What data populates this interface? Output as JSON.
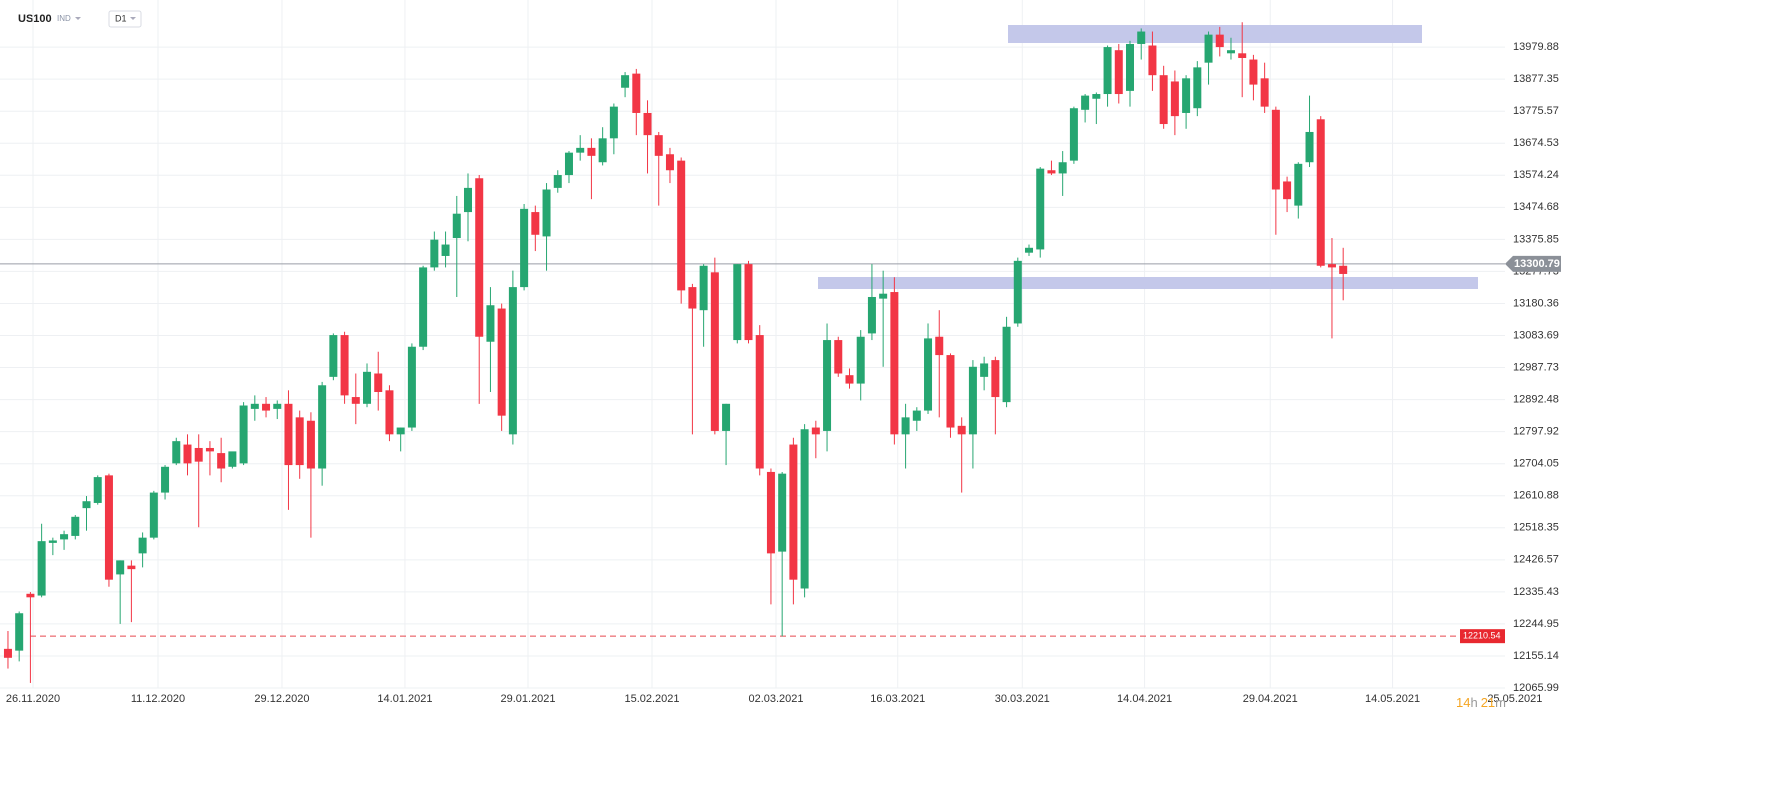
{
  "chart_data": {
    "type": "candlestick",
    "title": "US100",
    "subtitle": "IND",
    "timeframe": "D1",
    "up_color": "#26a671",
    "down_color": "#f23645",
    "log": true,
    "grid": true,
    "ylim": [
      12066,
      14132
    ],
    "yticks": [
      13979.88,
      13877.35,
      13775.57,
      13674.53,
      13574.24,
      13474.68,
      13375.85,
      13277.73,
      13180.36,
      13083.69,
      12987.73,
      12892.48,
      12797.92,
      12704.05,
      12610.88,
      12518.35,
      12426.57,
      12335.43,
      12244.95,
      12155.14,
      12065.99
    ],
    "xlim": [
      -0.71,
      135.65
    ],
    "xticks": [
      {
        "value": 2.23,
        "label": "26.11.2020"
      },
      {
        "value": 13.37,
        "label": "11.12.2020"
      },
      {
        "value": 24.42,
        "label": "29.12.2020"
      },
      {
        "value": 35.38,
        "label": "14.01.2021"
      },
      {
        "value": 46.35,
        "label": "29.01.2021"
      },
      {
        "value": 57.4,
        "label": "15.02.2021"
      },
      {
        "value": 68.45,
        "label": "02.03.2021"
      },
      {
        "value": 79.3,
        "label": "16.03.2021"
      },
      {
        "value": 90.4,
        "label": "30.03.2021"
      },
      {
        "value": 101.3,
        "label": "14.04.2021"
      },
      {
        "value": 112.5,
        "label": "29.04.2021"
      },
      {
        "value": 123.4,
        "label": "14.05.2021"
      },
      {
        "value": 134.3,
        "label": "25.05.2021"
      }
    ],
    "open": [
      12175,
      12170,
      12330,
      12325,
      12475,
      12485,
      12495,
      12575,
      12590,
      12670,
      12385,
      12410,
      12445,
      12490,
      12620,
      12705,
      12760,
      12750,
      12750,
      12735,
      12695,
      12705,
      12865,
      12880,
      12865,
      12880,
      12840,
      12830,
      12690,
      12960,
      13085,
      12900,
      12880,
      12970,
      12920,
      12790,
      12810,
      13050,
      13290,
      13325,
      13380,
      13460,
      13565,
      13065,
      13165,
      12790,
      13230,
      13460,
      13385,
      13535,
      13575,
      13645,
      13660,
      13615,
      13690,
      13850,
      13895,
      13770,
      13700,
      13640,
      13620,
      13230,
      13160,
      13275,
      12800,
      13070,
      13300,
      13085,
      12680,
      12450,
      12760,
      12345,
      12810,
      12800,
      13070,
      12965,
      12940,
      13090,
      13195,
      13215,
      12790,
      12830,
      12860,
      13080,
      13025,
      12815,
      12790,
      12960,
      13010,
      12885,
      13120,
      13335,
      13345,
      13590,
      13580,
      13620,
      13780,
      13815,
      13830,
      13970,
      13840,
      13990,
      13985,
      13890,
      13870,
      13770,
      13785,
      13930,
      14020,
      13960,
      13960,
      13940,
      13880,
      13780,
      13555,
      13480,
      13615,
      13750,
      13300,
      13295
    ],
    "high": [
      12225,
      12280,
      12335,
      12530,
      12490,
      12510,
      12555,
      12610,
      12670,
      12675,
      12425,
      12425,
      12505,
      12625,
      12700,
      12780,
      12790,
      12790,
      12770,
      12780,
      12730,
      12885,
      12905,
      12900,
      12890,
      12920,
      12860,
      12855,
      12945,
      13090,
      13095,
      12970,
      13000,
      13035,
      12935,
      12810,
      13060,
      13295,
      13400,
      13400,
      13510,
      13580,
      13575,
      13230,
      13180,
      13280,
      13485,
      13480,
      13550,
      13590,
      13650,
      13700,
      13690,
      13725,
      13800,
      13900,
      13910,
      13810,
      13710,
      13660,
      13630,
      13240,
      13300,
      13320,
      12880,
      13300,
      13310,
      13115,
      12690,
      12680,
      12780,
      12820,
      12830,
      13120,
      13080,
      12985,
      13100,
      13300,
      13280,
      13260,
      12880,
      12870,
      13120,
      13160,
      13030,
      12840,
      13010,
      13020,
      13020,
      13140,
      13320,
      13360,
      13600,
      13620,
      13650,
      13790,
      13830,
      13835,
      13985,
      13990,
      14000,
      14040,
      14030,
      13920,
      13905,
      13890,
      13935,
      14030,
      14045,
      14010,
      14060,
      13955,
      13930,
      13790,
      13570,
      13615,
      13825,
      13760,
      13380,
      13350
    ],
    "low": [
      12120,
      12140,
      12080,
      12320,
      12440,
      12455,
      12485,
      12510,
      12585,
      12350,
      12245,
      12250,
      12405,
      12485,
      12600,
      12700,
      12670,
      12520,
      12670,
      12650,
      12690,
      12700,
      12830,
      12840,
      12835,
      12570,
      12660,
      12490,
      12640,
      12950,
      12880,
      12820,
      12870,
      12860,
      12770,
      12740,
      12800,
      13040,
      13280,
      13290,
      13200,
      13370,
      12880,
      12915,
      12800,
      12760,
      13220,
      13340,
      13280,
      13520,
      13550,
      13620,
      13500,
      13605,
      13640,
      13820,
      13700,
      13580,
      13480,
      13550,
      13180,
      12790,
      13050,
      12790,
      12700,
      13060,
      13060,
      12670,
      12300,
      12210,
      12300,
      12320,
      12720,
      12740,
      12960,
      12925,
      12890,
      13070,
      12990,
      12760,
      12690,
      12800,
      12850,
      12840,
      12780,
      12620,
      12690,
      12920,
      12790,
      12870,
      13110,
      13325,
      13320,
      13575,
      13510,
      13610,
      13740,
      13735,
      13790,
      13800,
      13790,
      13940,
      13840,
      13720,
      13700,
      13720,
      13760,
      13860,
      13950,
      13940,
      13820,
      13810,
      13770,
      13390,
      13460,
      13440,
      13600,
      13290,
      13075,
      13190
    ],
    "close": [
      12150,
      12275,
      12320,
      12480,
      12482,
      12500,
      12550,
      12595,
      12665,
      12370,
      12425,
      12400,
      12490,
      12620,
      12695,
      12770,
      12705,
      12710,
      12740,
      12690,
      12740,
      12875,
      12880,
      12860,
      12880,
      12700,
      12700,
      12690,
      12935,
      13085,
      12905,
      12880,
      12975,
      12915,
      12790,
      12810,
      13050,
      13290,
      13375,
      13360,
      13455,
      13535,
      13080,
      13175,
      12845,
      13230,
      13470,
      13390,
      13530,
      13575,
      13645,
      13660,
      13635,
      13690,
      13790,
      13890,
      13770,
      13700,
      13635,
      13590,
      13220,
      13165,
      13295,
      12800,
      12880,
      13300,
      13070,
      12690,
      12445,
      12675,
      12370,
      12805,
      12790,
      13070,
      12970,
      12940,
      13080,
      13200,
      13210,
      12790,
      12840,
      12860,
      13075,
      13025,
      12810,
      12790,
      12990,
      13000,
      12900,
      13110,
      13310,
      13350,
      13595,
      13580,
      13615,
      13785,
      13825,
      13830,
      13980,
      13830,
      13990,
      14030,
      13890,
      13735,
      13760,
      13880,
      13915,
      14020,
      13980,
      13970,
      13945,
      13860,
      13790,
      13530,
      13500,
      13610,
      13710,
      13295,
      13290,
      13270
    ],
    "last_price": 13300.79,
    "reference_level": 12210.54,
    "timer": [
      "14",
      "h",
      "21",
      "m"
    ]
  }
}
